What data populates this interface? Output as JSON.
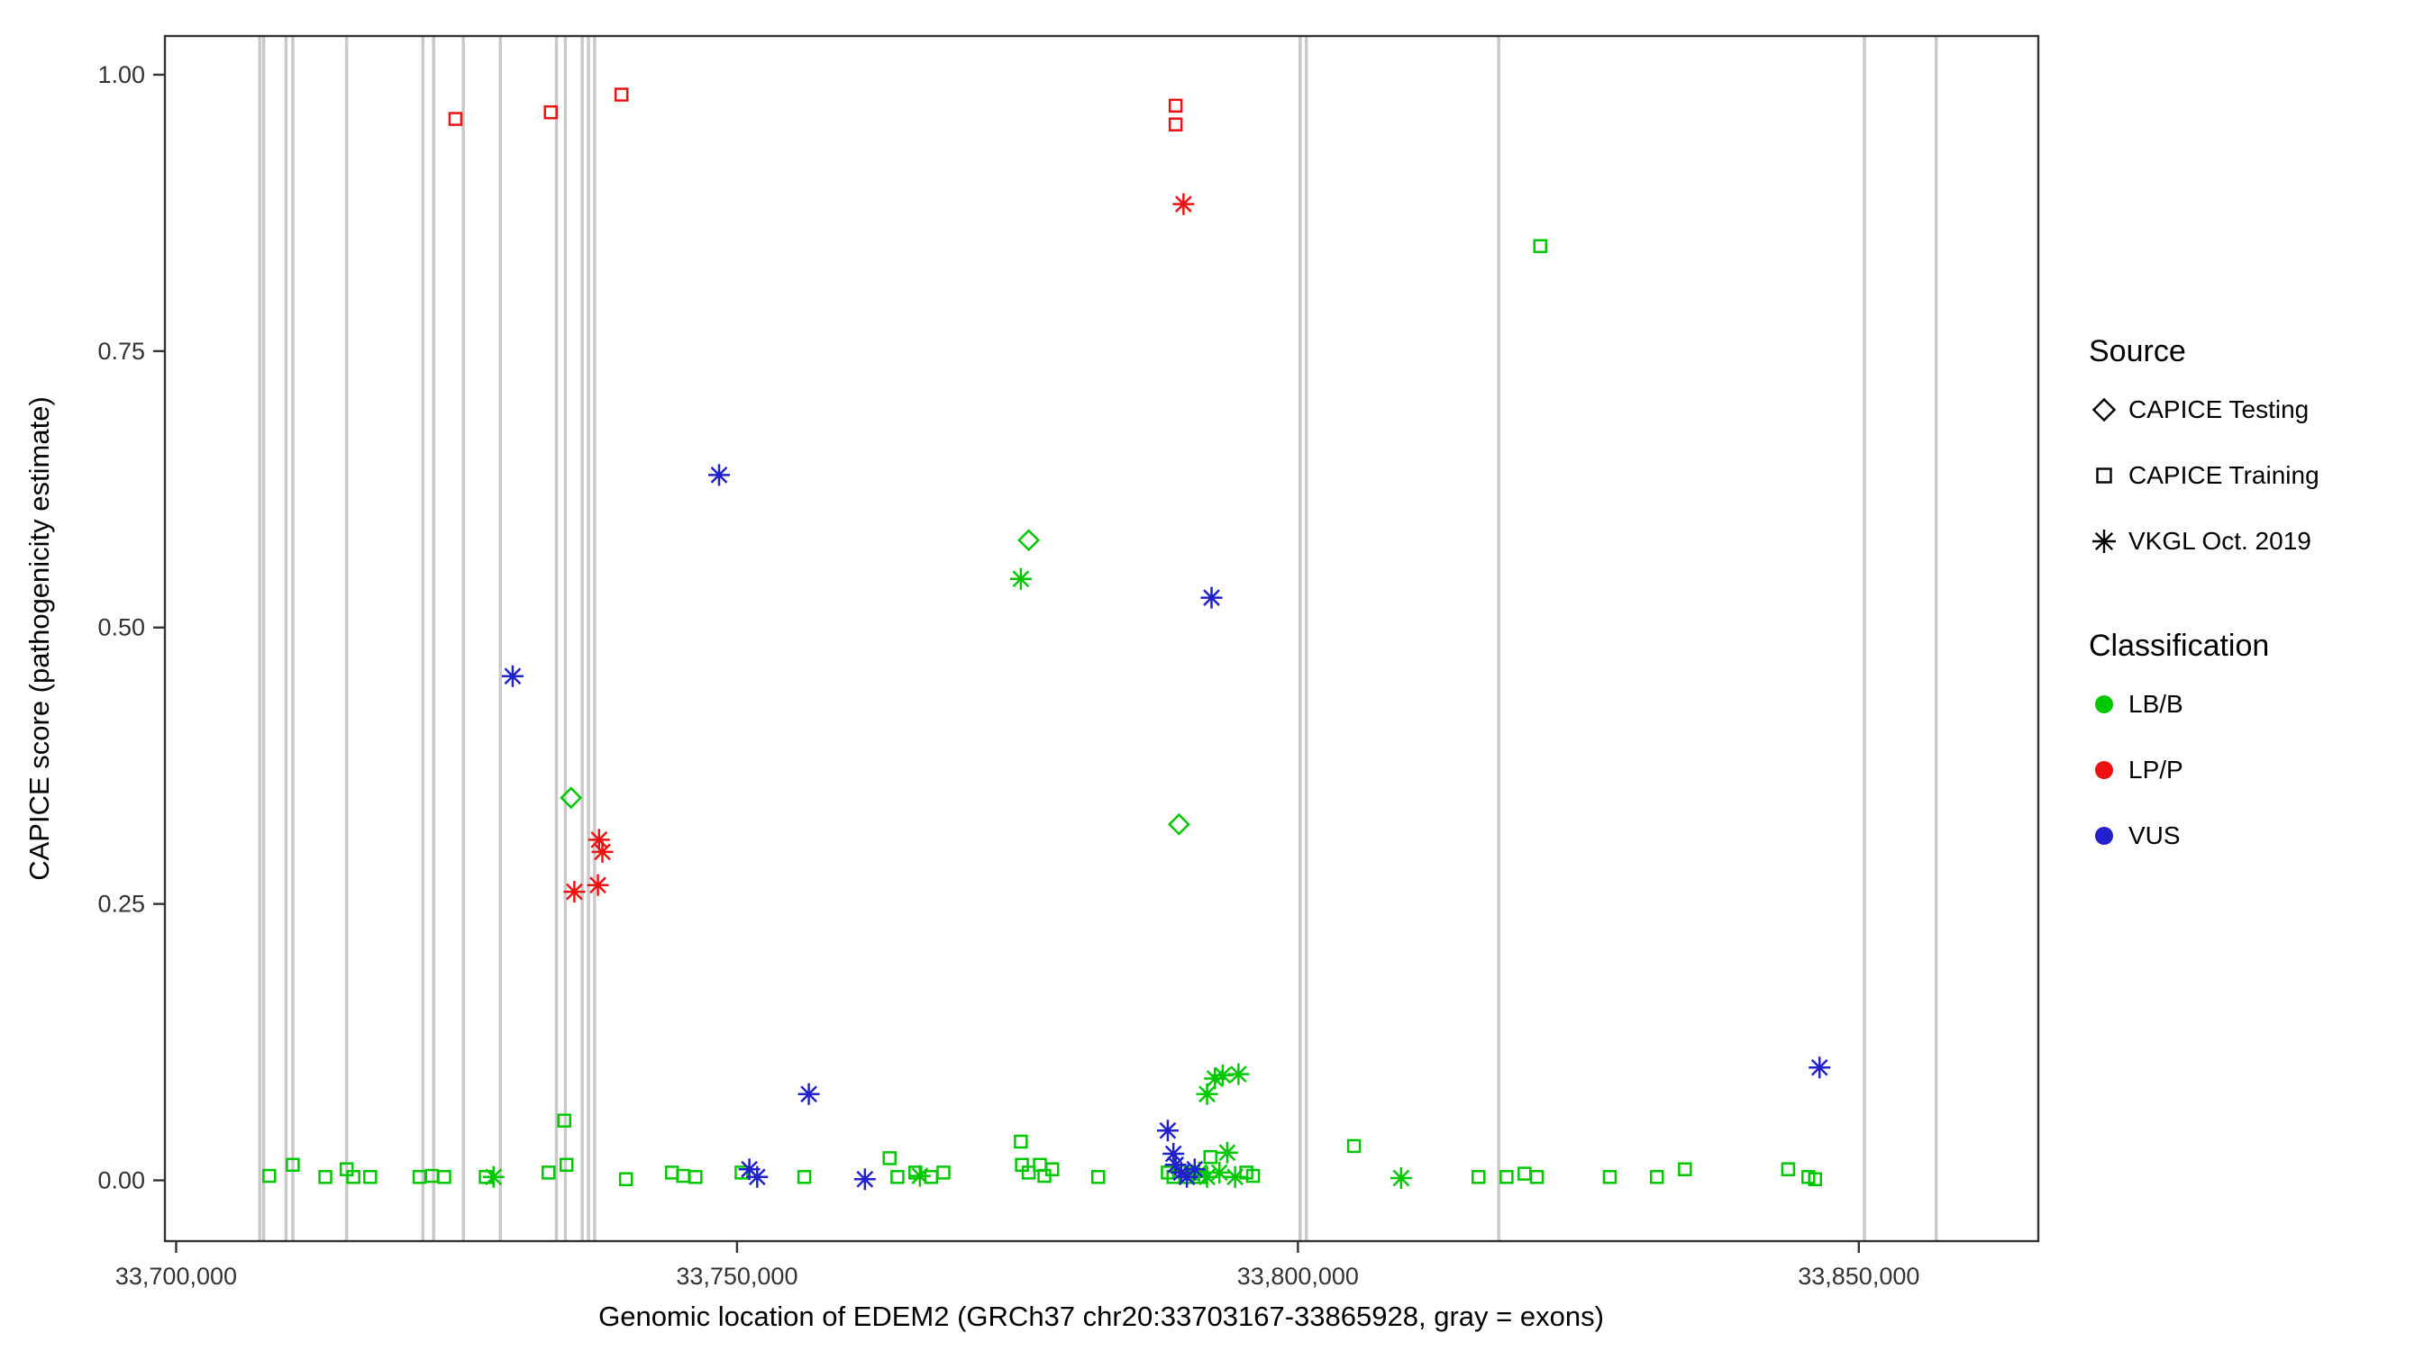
{
  "chart_data": {
    "type": "scatter",
    "title": "",
    "xlabel": "Genomic location of EDEM2 (GRCh37 chr20:33703167-33865928, gray = exons)",
    "ylabel": "CAPICE score (pathogenicity estimate)",
    "xlim": [
      33699000,
      33866000
    ],
    "ylim": [
      -0.055,
      1.035
    ],
    "xticks": [
      33700000,
      33750000,
      33800000,
      33850000
    ],
    "xtick_labels": [
      "33,700,000",
      "33,750,000",
      "33,800,000",
      "33,850,000"
    ],
    "yticks": [
      0,
      0.25,
      0.5,
      0.75,
      1
    ],
    "ytick_labels": [
      "0.00",
      "0.25",
      "0.50",
      "0.75",
      "1.00"
    ],
    "grid": "off",
    "legend_position": "right",
    "exon_color": "#c9c9c9",
    "exons": [
      33707450,
      33707800,
      33709800,
      33710400,
      33715200,
      33722000,
      33722950,
      33725600,
      33728900,
      33733900,
      33734700,
      33736200,
      33736760,
      33737300,
      33800200,
      33800750,
      33817900,
      33850500,
      33856900
    ],
    "colors": {
      "LB/B": "#00c800",
      "LP/P": "#ee1111",
      "VUS": "#2222cc"
    },
    "shapes": {
      "CAPICE Testing": "diamond",
      "CAPICE Training": "square",
      "VKGL Oct. 2019": "asterisk"
    },
    "series": [
      {
        "source": "CAPICE Testing",
        "classification": "LB/B",
        "points": [
          [
            33735200,
            0.346
          ],
          [
            33776000,
            0.579
          ],
          [
            33789400,
            0.322
          ]
        ]
      },
      {
        "source": "CAPICE Training",
        "classification": "LP/P",
        "points": [
          [
            33724900,
            0.96
          ],
          [
            33733400,
            0.966
          ],
          [
            33739700,
            0.982
          ],
          [
            33789100,
            0.972
          ],
          [
            33789100,
            0.955
          ]
        ]
      },
      {
        "source": "CAPICE Training",
        "classification": "LB/B",
        "points": [
          [
            33708300,
            0.004
          ],
          [
            33710400,
            0.014
          ],
          [
            33713300,
            0.003
          ],
          [
            33715200,
            0.01
          ],
          [
            33715800,
            0.003
          ],
          [
            33717300,
            0.003
          ],
          [
            33721700,
            0.003
          ],
          [
            33722800,
            0.004
          ],
          [
            33723900,
            0.003
          ],
          [
            33727600,
            0.003
          ],
          [
            33733200,
            0.007
          ],
          [
            33734600,
            0.054
          ],
          [
            33734800,
            0.014
          ],
          [
            33740100,
            0.001
          ],
          [
            33744200,
            0.007
          ],
          [
            33745200,
            0.004
          ],
          [
            33746300,
            0.003
          ],
          [
            33750400,
            0.007
          ],
          [
            33756000,
            0.003
          ],
          [
            33763600,
            0.02
          ],
          [
            33764300,
            0.003
          ],
          [
            33765900,
            0.007
          ],
          [
            33767300,
            0.003
          ],
          [
            33768400,
            0.007
          ],
          [
            33775300,
            0.035
          ],
          [
            33775400,
            0.014
          ],
          [
            33776000,
            0.007
          ],
          [
            33777000,
            0.014
          ],
          [
            33777400,
            0.004
          ],
          [
            33778100,
            0.01
          ],
          [
            33782200,
            0.003
          ],
          [
            33788400,
            0.007
          ],
          [
            33788900,
            0.003
          ],
          [
            33789400,
            0.008
          ],
          [
            33790000,
            0.003
          ],
          [
            33790500,
            0.006
          ],
          [
            33791200,
            0.003
          ],
          [
            33792200,
            0.021
          ],
          [
            33795400,
            0.007
          ],
          [
            33796000,
            0.004
          ],
          [
            33805000,
            0.031
          ],
          [
            33816100,
            0.003
          ],
          [
            33818600,
            0.003
          ],
          [
            33820200,
            0.006
          ],
          [
            33821300,
            0.003
          ],
          [
            33821600,
            0.845
          ],
          [
            33827800,
            0.003
          ],
          [
            33832000,
            0.003
          ],
          [
            33834500,
            0.01
          ],
          [
            33843700,
            0.01
          ],
          [
            33845500,
            0.003
          ],
          [
            33846100,
            0.001
          ]
        ]
      },
      {
        "source": "VKGL Oct. 2019",
        "classification": "LB/B",
        "points": [
          [
            33728300,
            0.003
          ],
          [
            33766300,
            0.004
          ],
          [
            33775300,
            0.544
          ],
          [
            33791200,
            0.007
          ],
          [
            33791900,
            0.003
          ],
          [
            33791900,
            0.078
          ],
          [
            33792600,
            0.092
          ],
          [
            33793000,
            0.007
          ],
          [
            33793300,
            0.095
          ],
          [
            33793700,
            0.025
          ],
          [
            33794400,
            0.003
          ],
          [
            33794700,
            0.096
          ],
          [
            33809200,
            0.002
          ]
        ]
      },
      {
        "source": "VKGL Oct. 2019",
        "classification": "LP/P",
        "points": [
          [
            33735500,
            0.261
          ],
          [
            33737600,
            0.267
          ],
          [
            33737700,
            0.308
          ],
          [
            33738000,
            0.297
          ],
          [
            33789800,
            0.883
          ]
        ]
      },
      {
        "source": "VKGL Oct. 2019",
        "classification": "VUS",
        "points": [
          [
            33730000,
            0.456
          ],
          [
            33748400,
            0.638
          ],
          [
            33751100,
            0.01
          ],
          [
            33751800,
            0.003
          ],
          [
            33756400,
            0.078
          ],
          [
            33761400,
            0.001
          ],
          [
            33788400,
            0.045
          ],
          [
            33788900,
            0.024
          ],
          [
            33789100,
            0.014
          ],
          [
            33789600,
            0.007
          ],
          [
            33790100,
            0.003
          ],
          [
            33790800,
            0.01
          ],
          [
            33792300,
            0.527
          ],
          [
            33846500,
            0.102
          ]
        ]
      }
    ]
  },
  "legend": {
    "source": {
      "title": "Source",
      "items": [
        {
          "shape": "diamond",
          "label": "CAPICE Testing"
        },
        {
          "shape": "square",
          "label": "CAPICE Training"
        },
        {
          "shape": "asterisk",
          "label": "VKGL Oct. 2019"
        }
      ]
    },
    "classification": {
      "title": "Classification",
      "items": [
        {
          "color": "#00c800",
          "label": "LB/B"
        },
        {
          "color": "#ee1111",
          "label": "LP/P"
        },
        {
          "color": "#2222cc",
          "label": "VUS"
        }
      ]
    }
  }
}
